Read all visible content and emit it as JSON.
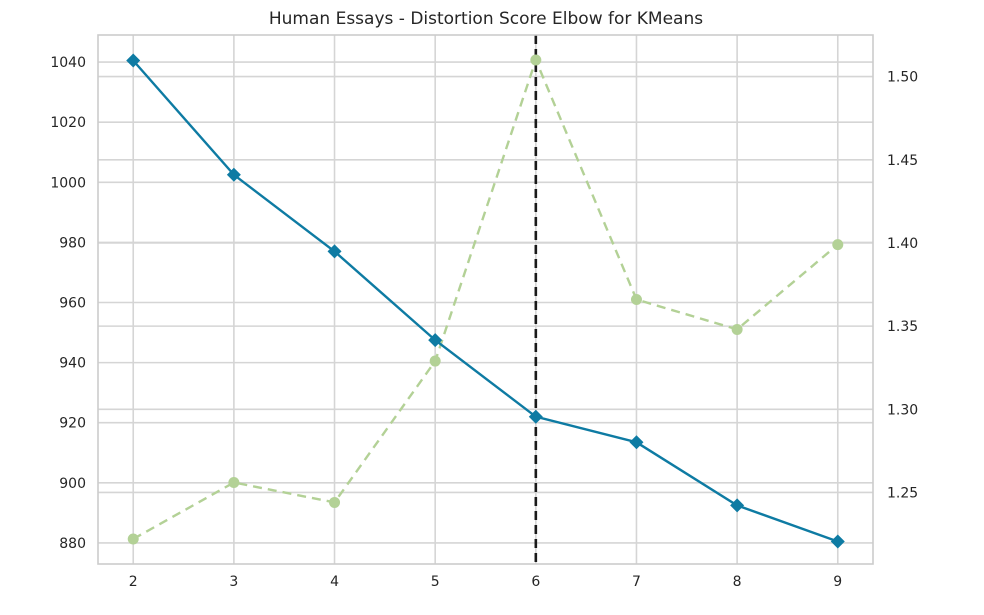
{
  "chart_data": {
    "type": "line",
    "title": "Human Essays - Distortion Score Elbow for KMeans",
    "xlabel": "",
    "ylabel": "",
    "x": [
      2,
      3,
      4,
      5,
      6,
      7,
      8,
      9
    ],
    "xticks": [
      "2",
      "3",
      "4",
      "5",
      "6",
      "7",
      "8",
      "9"
    ],
    "xlim": [
      1.65,
      9.35
    ],
    "left_axis": {
      "ylim": [
        873,
        1049
      ],
      "ticks": [
        880,
        900,
        920,
        940,
        960,
        980,
        1000,
        1020,
        1040
      ],
      "tick_labels": [
        "880",
        "900",
        "920",
        "940",
        "960",
        "980",
        "1000",
        "1020",
        "1040"
      ]
    },
    "right_axis": {
      "ylim": [
        1.207,
        1.525
      ],
      "ticks": [
        1.25,
        1.3,
        1.35,
        1.4,
        1.45,
        1.5
      ],
      "tick_labels": [
        "1.25",
        "1.30",
        "1.35",
        "1.40",
        "1.45",
        "1.50"
      ]
    },
    "series": [
      {
        "axis": "left",
        "values": [
          1040.5,
          1002.5,
          977,
          947.5,
          922,
          913.5,
          892.5,
          880.5
        ],
        "color": "#0e7ba3",
        "line": "solid",
        "marker": "diamond"
      },
      {
        "axis": "right",
        "values": [
          1.222,
          1.256,
          1.244,
          1.329,
          1.51,
          1.366,
          1.348,
          1.399
        ],
        "color": "#b3d196",
        "line": "dashed",
        "marker": "circle"
      }
    ],
    "elbow": {
      "x": 6,
      "color": "#1a1a1a",
      "line": "dashed"
    },
    "grid": true,
    "legend": "none"
  }
}
